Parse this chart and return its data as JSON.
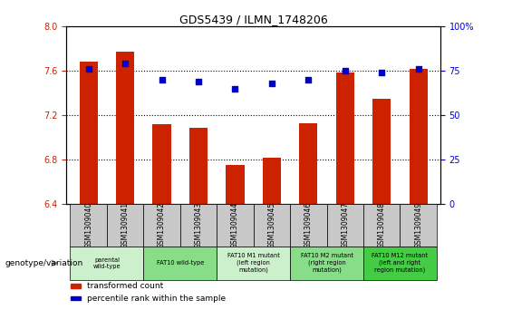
{
  "title": "GDS5439 / ILMN_1748206",
  "samples": [
    "GSM1309040",
    "GSM1309041",
    "GSM1309042",
    "GSM1309043",
    "GSM1309044",
    "GSM1309045",
    "GSM1309046",
    "GSM1309047",
    "GSM1309048",
    "GSM1309049"
  ],
  "bar_values": [
    7.68,
    7.77,
    7.12,
    7.09,
    6.75,
    6.82,
    7.13,
    7.58,
    7.35,
    7.62
  ],
  "dot_values": [
    76,
    79,
    70,
    69,
    65,
    68,
    70,
    75,
    74,
    76
  ],
  "ylim_left": [
    6.4,
    8.0
  ],
  "ylim_right": [
    0,
    100
  ],
  "yticks_left": [
    6.4,
    6.8,
    7.2,
    7.6,
    8.0
  ],
  "yticks_right": [
    0,
    25,
    50,
    75,
    100
  ],
  "bar_color": "#cc2200",
  "dot_color": "#0000cc",
  "bg_color": "#ffffff",
  "table_bg_gray": "#c8c8c8",
  "genotype_groups": [
    {
      "label": "parental\nwild-type",
      "span": [
        0,
        2
      ],
      "color": "#ccf0cc"
    },
    {
      "label": "FAT10 wild-type",
      "span": [
        2,
        4
      ],
      "color": "#88dd88"
    },
    {
      "label": "FAT10 M1 mutant\n(left region\nmutation)",
      "span": [
        4,
        6
      ],
      "color": "#ccf0cc"
    },
    {
      "label": "FAT10 M2 mutant\n(right region\nmutation)",
      "span": [
        6,
        8
      ],
      "color": "#88dd88"
    },
    {
      "label": "FAT10 M12 mutant\n(left and right\nregion mutation)",
      "span": [
        8,
        10
      ],
      "color": "#44cc44"
    }
  ],
  "legend_items": [
    {
      "label": "transformed count",
      "color": "#cc2200"
    },
    {
      "label": "percentile rank within the sample",
      "color": "#0000cc"
    }
  ],
  "left_label": "genotype/variation",
  "bar_width": 0.5
}
